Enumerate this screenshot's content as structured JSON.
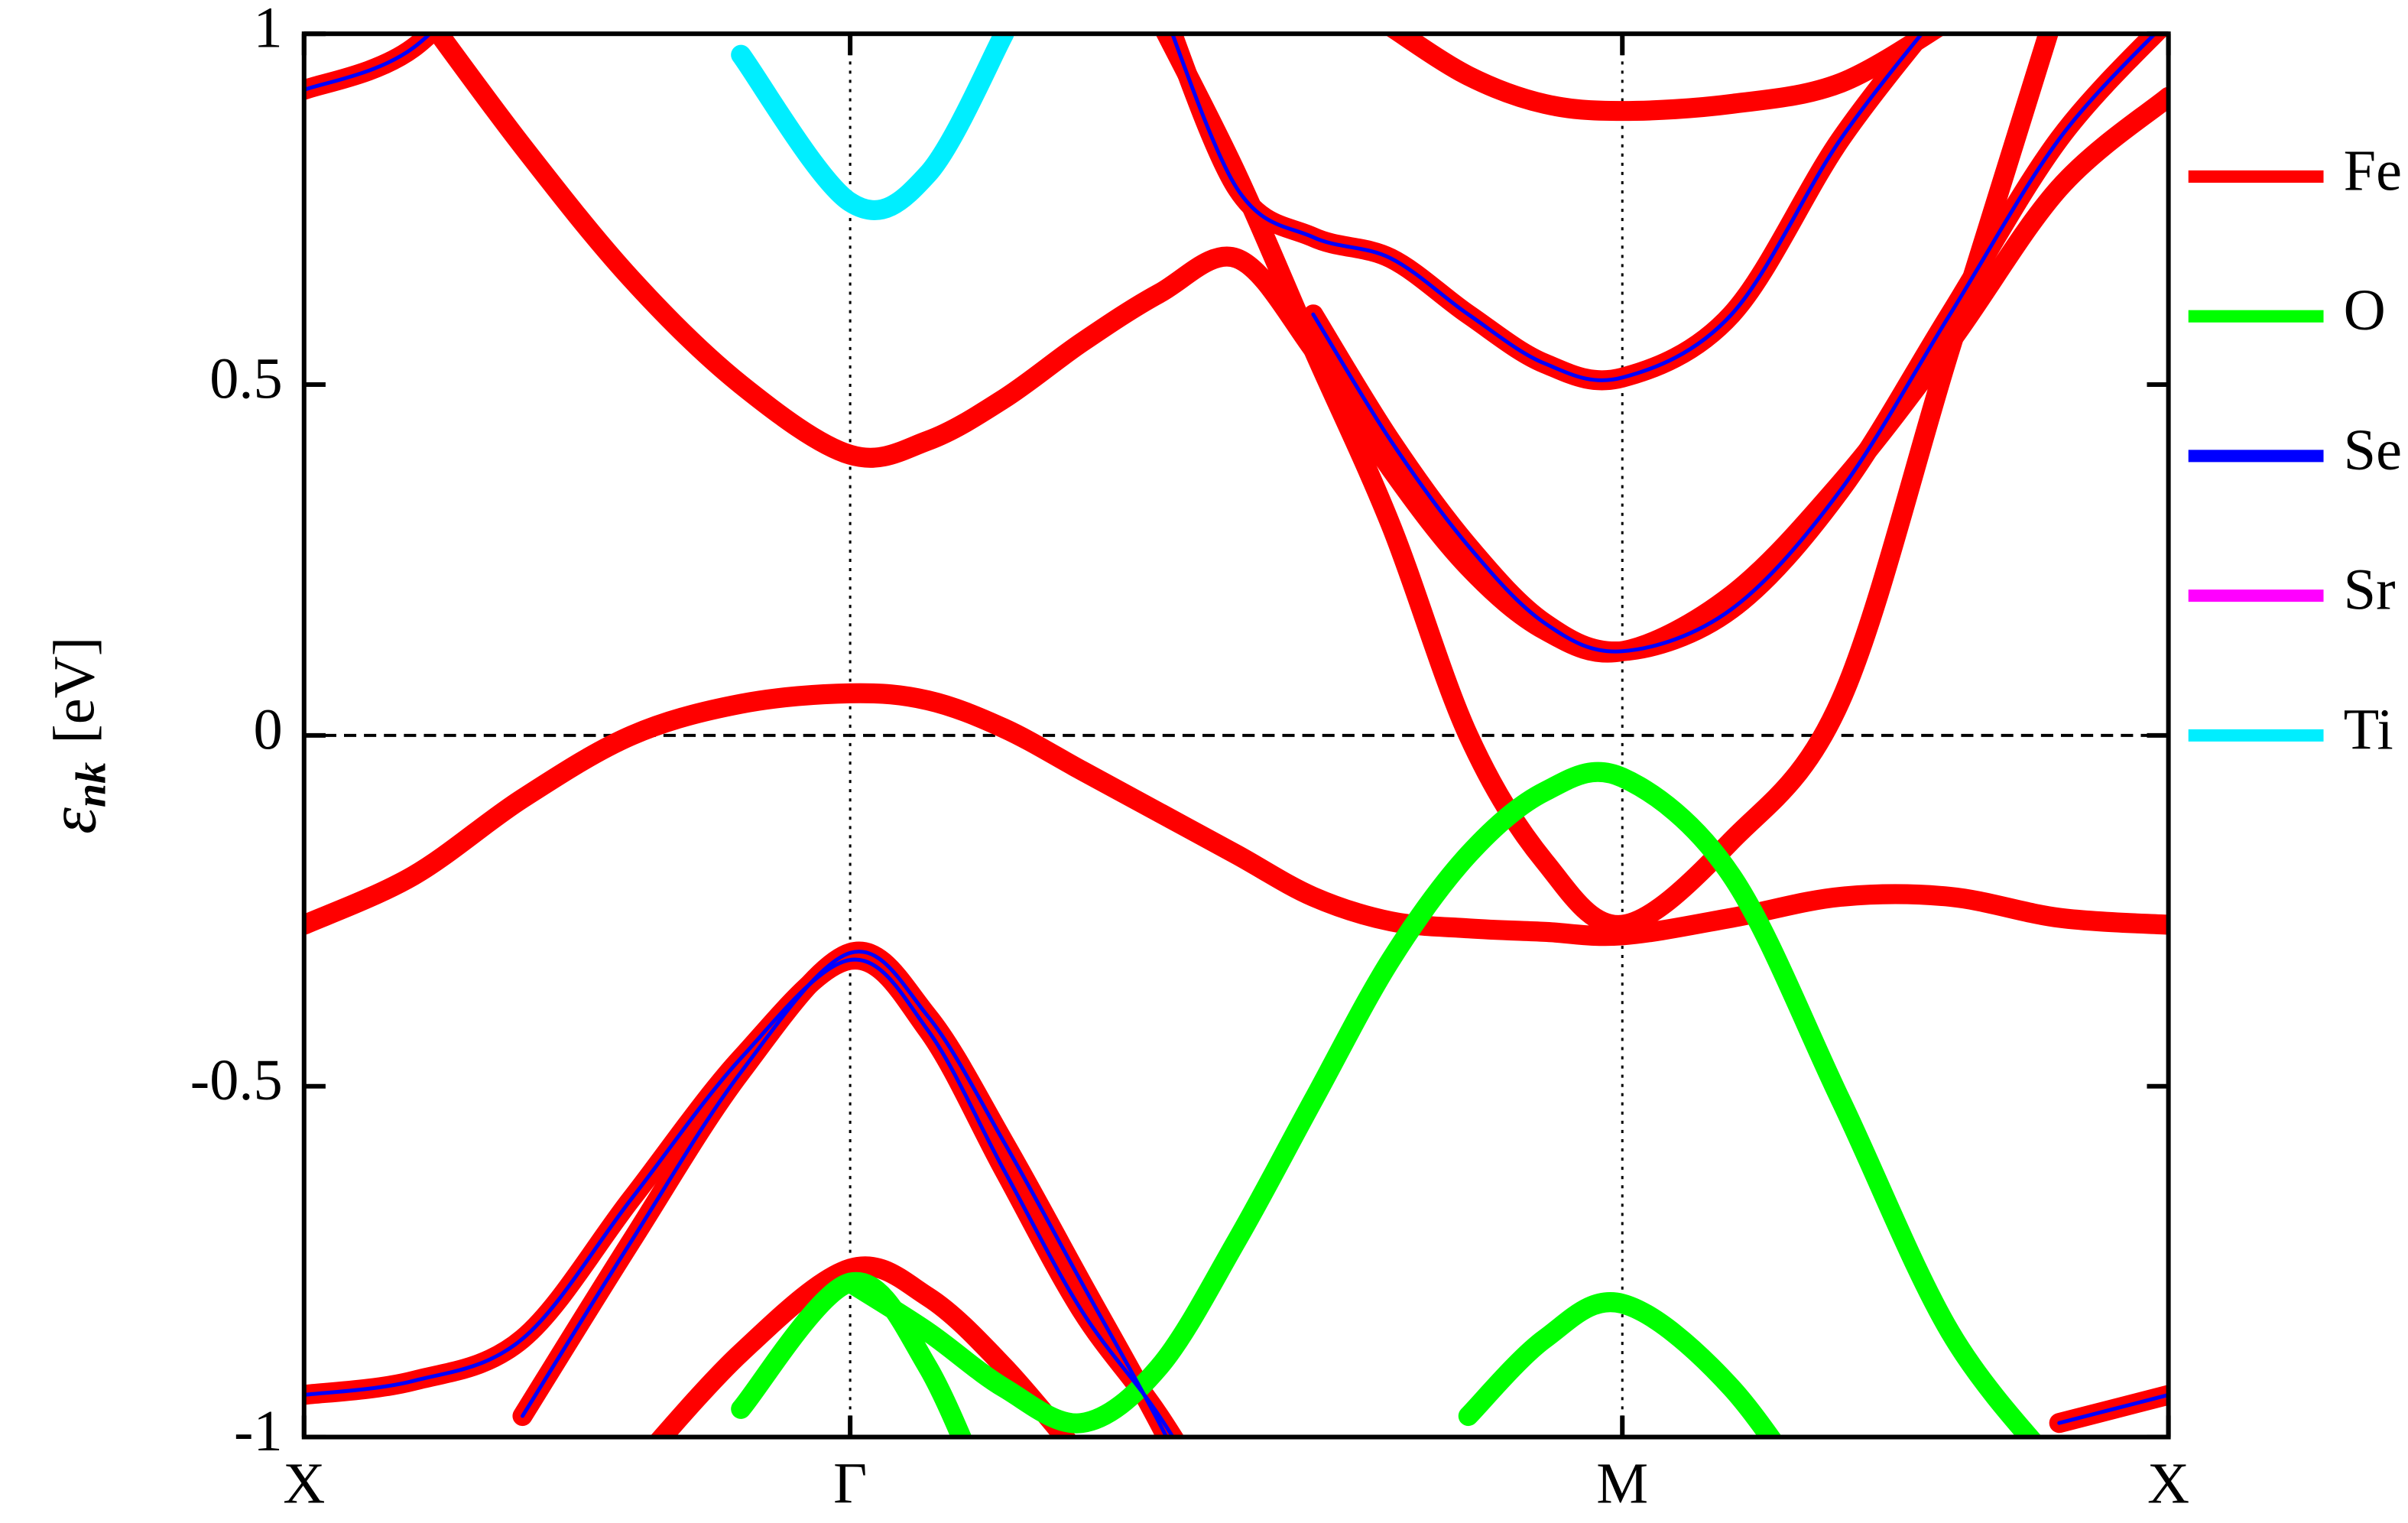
{
  "chart_data": {
    "type": "line",
    "y_label": {
      "symbol": "ε",
      "subscript": "nk",
      "unit": "[eV]"
    },
    "x": [
      0,
      0.1,
      0.2,
      0.3,
      0.4,
      0.5,
      0.571,
      0.641,
      0.712,
      0.783,
      0.854,
      0.924,
      0.995,
      1.066,
      1.136,
      1.207,
      1.307,
      1.407,
      1.507,
      1.607,
      1.707
    ],
    "xlim": [
      0,
      1.707
    ],
    "xticks": [
      {
        "value": 0,
        "label": "X"
      },
      {
        "value": 0.5,
        "label": "Γ"
      },
      {
        "value": 1.207,
        "label": "M"
      },
      {
        "value": 1.707,
        "label": "X"
      }
    ],
    "ylim": [
      -1,
      1
    ],
    "yticks": [
      -1,
      -0.5,
      0,
      0.5,
      1
    ],
    "grid": "x",
    "legend": "right",
    "series": [
      {
        "name": "Fe",
        "color": "#ff0000",
        "bands": [
          [
            -0.27,
            -0.2,
            -0.09,
            0.0,
            0.045,
            0.06,
            0.05,
            0.01,
            -0.05,
            -0.11,
            -0.17,
            -0.23,
            -0.265,
            -0.275,
            -0.28,
            -0.285,
            -0.26,
            -0.23,
            -0.23,
            -0.26,
            -0.27
          ],
          [
            null,
            1.05,
            0.84,
            0.65,
            0.5,
            0.4,
            0.42,
            0.48,
            0.56,
            0.63,
            0.68,
            0.55,
            0.38,
            0.24,
            0.15,
            0.12,
            0.2,
            0.36,
            0.56,
            0.78,
            0.91
          ],
          [
            0.92,
            0.98,
            1.15,
            null,
            null,
            null,
            null,
            null,
            null,
            null,
            null,
            null,
            null,
            null,
            null,
            null,
            null,
            null,
            null,
            null,
            null
          ],
          [
            null,
            null,
            null,
            null,
            null,
            null,
            null,
            null,
            null,
            1.02,
            0.8,
            0.55,
            0.3,
            0.0,
            -0.18,
            -0.27,
            -0.15,
            0.05,
            0.55,
            1.05,
            null
          ],
          [
            null,
            null,
            null,
            null,
            null,
            null,
            null,
            null,
            null,
            1.05,
            0.78,
            0.71,
            0.68,
            0.6,
            0.53,
            0.51,
            0.6,
            0.85,
            1.05,
            null,
            null
          ],
          [
            null,
            null,
            null,
            null,
            null,
            null,
            null,
            null,
            null,
            null,
            null,
            0.6,
            0.42,
            0.27,
            0.16,
            0.12,
            0.18,
            0.35,
            0.6,
            0.85,
            1.02
          ],
          [
            null,
            null,
            null,
            null,
            null,
            null,
            null,
            null,
            null,
            null,
            null,
            null,
            1.01,
            0.94,
            0.9,
            0.89,
            0.9,
            0.93,
            1.02,
            null,
            null
          ],
          [
            null,
            null,
            -0.97,
            -0.72,
            -0.48,
            -0.31,
            -0.4,
            -0.58,
            -0.78,
            -0.98,
            -1.2,
            null,
            null,
            null,
            null,
            null,
            null,
            null,
            null,
            null,
            null
          ],
          [
            -0.94,
            -0.92,
            -0.86,
            -0.66,
            -0.46,
            -0.32,
            -0.42,
            -0.62,
            -0.82,
            -0.97,
            -1.15,
            null,
            null,
            null,
            null,
            null,
            null,
            null,
            null,
            null,
            null
          ],
          [
            null,
            null,
            null,
            -1.05,
            -0.88,
            -0.76,
            -0.8,
            -0.9,
            -1.03,
            null,
            null,
            null,
            null,
            null,
            null,
            null,
            null,
            null,
            null,
            null,
            null
          ],
          [
            null,
            null,
            null,
            null,
            null,
            null,
            null,
            null,
            null,
            null,
            null,
            null,
            null,
            null,
            null,
            null,
            null,
            null,
            null,
            -0.98,
            -0.94
          ]
        ]
      },
      {
        "name": "O",
        "color": "#00ff00",
        "bands": [
          [
            null,
            null,
            null,
            null,
            null,
            -0.78,
            -0.85,
            -0.93,
            -0.98,
            -0.9,
            -0.72,
            -0.52,
            -0.32,
            -0.17,
            -0.08,
            -0.06,
            -0.2,
            -0.52,
            -0.85,
            -1.05,
            null
          ],
          [
            null,
            null,
            null,
            null,
            -0.96,
            -0.78,
            -0.9,
            -1.15,
            null,
            null,
            null,
            null,
            null,
            null,
            null,
            null,
            null,
            null,
            null,
            null,
            null
          ],
          [
            null,
            null,
            null,
            null,
            null,
            null,
            null,
            null,
            null,
            null,
            null,
            null,
            null,
            -0.97,
            -0.86,
            -0.81,
            -0.93,
            -1.15,
            null,
            null,
            null
          ]
        ]
      },
      {
        "name": "Se",
        "color": "#0000ff",
        "bands": [
          [
            0.92,
            0.98,
            1.15,
            null,
            null,
            null,
            null,
            null,
            null,
            null,
            null,
            null,
            null,
            null,
            null,
            null,
            null,
            null,
            null,
            null,
            null
          ],
          [
            null,
            null,
            -0.97,
            -0.72,
            -0.48,
            -0.31,
            -0.4,
            -0.58,
            -0.78,
            -0.98,
            -1.2,
            null,
            null,
            null,
            null,
            null,
            null,
            null,
            null,
            null,
            null
          ],
          [
            -0.94,
            -0.92,
            -0.86,
            -0.66,
            -0.46,
            -0.32,
            -0.42,
            -0.62,
            -0.82,
            -0.97,
            -1.15,
            null,
            null,
            null,
            null,
            null,
            null,
            null,
            null,
            null,
            null
          ],
          [
            null,
            null,
            null,
            null,
            null,
            null,
            null,
            null,
            null,
            1.05,
            0.78,
            0.71,
            0.68,
            0.6,
            0.53,
            0.51,
            0.6,
            0.85,
            1.05,
            null,
            null
          ],
          [
            null,
            null,
            null,
            null,
            null,
            null,
            null,
            null,
            null,
            null,
            null,
            0.6,
            0.42,
            0.27,
            0.16,
            0.12,
            0.18,
            0.35,
            0.6,
            0.85,
            1.02
          ],
          [
            null,
            null,
            null,
            null,
            null,
            null,
            null,
            null,
            null,
            null,
            null,
            null,
            null,
            null,
            null,
            null,
            null,
            null,
            null,
            -0.98,
            -0.94
          ]
        ]
      },
      {
        "name": "Sr",
        "color": "#ff00ff",
        "bands": []
      },
      {
        "name": "Ti",
        "color": "#00eeff",
        "bands": [
          [
            null,
            null,
            null,
            null,
            0.97,
            0.76,
            0.8,
            1.0,
            null,
            null,
            null,
            null,
            null,
            null,
            null,
            null,
            null,
            null,
            null,
            null,
            null
          ]
        ]
      }
    ]
  }
}
